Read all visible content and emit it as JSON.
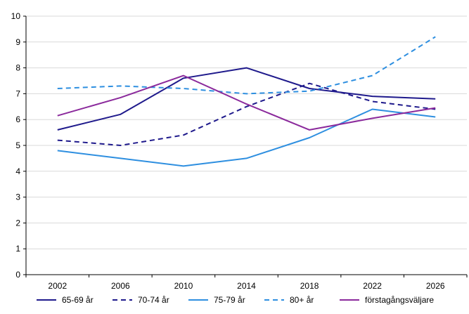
{
  "chart_data": {
    "type": "line",
    "title": "",
    "xlabel": "",
    "ylabel": "",
    "x": [
      "2002",
      "2006",
      "2010",
      "2014",
      "2018",
      "2022",
      "2026"
    ],
    "ylim": [
      0,
      10
    ],
    "yticks": [
      "0",
      "1",
      "2",
      "3",
      "4",
      "5",
      "6",
      "7",
      "8",
      "9",
      "10"
    ],
    "grid": "horizontal",
    "legend_position": "bottom",
    "series": [
      {
        "name": "65-69 år",
        "values": [
          5.6,
          6.2,
          7.6,
          8.0,
          7.2,
          6.9,
          6.8
        ],
        "color": "#1f1a8c",
        "dash": "solid"
      },
      {
        "name": "70-74 år",
        "values": [
          5.2,
          5.0,
          5.4,
          6.5,
          7.4,
          6.7,
          6.4
        ],
        "color": "#1f1a8c",
        "dash": "dashed"
      },
      {
        "name": "75-79 år",
        "values": [
          4.8,
          4.5,
          4.2,
          4.5,
          5.3,
          6.4,
          6.1
        ],
        "color": "#2e8fe0",
        "dash": "solid"
      },
      {
        "name": "80+ år",
        "values": [
          7.2,
          7.3,
          7.2,
          7.0,
          7.1,
          7.7,
          9.2
        ],
        "color": "#2e8fe0",
        "dash": "dashed"
      },
      {
        "name": "förstagångsväljare",
        "values": [
          6.15,
          6.85,
          7.7,
          6.6,
          5.6,
          6.05,
          6.45
        ],
        "color": "#8b2a9c",
        "dash": "solid"
      }
    ]
  }
}
